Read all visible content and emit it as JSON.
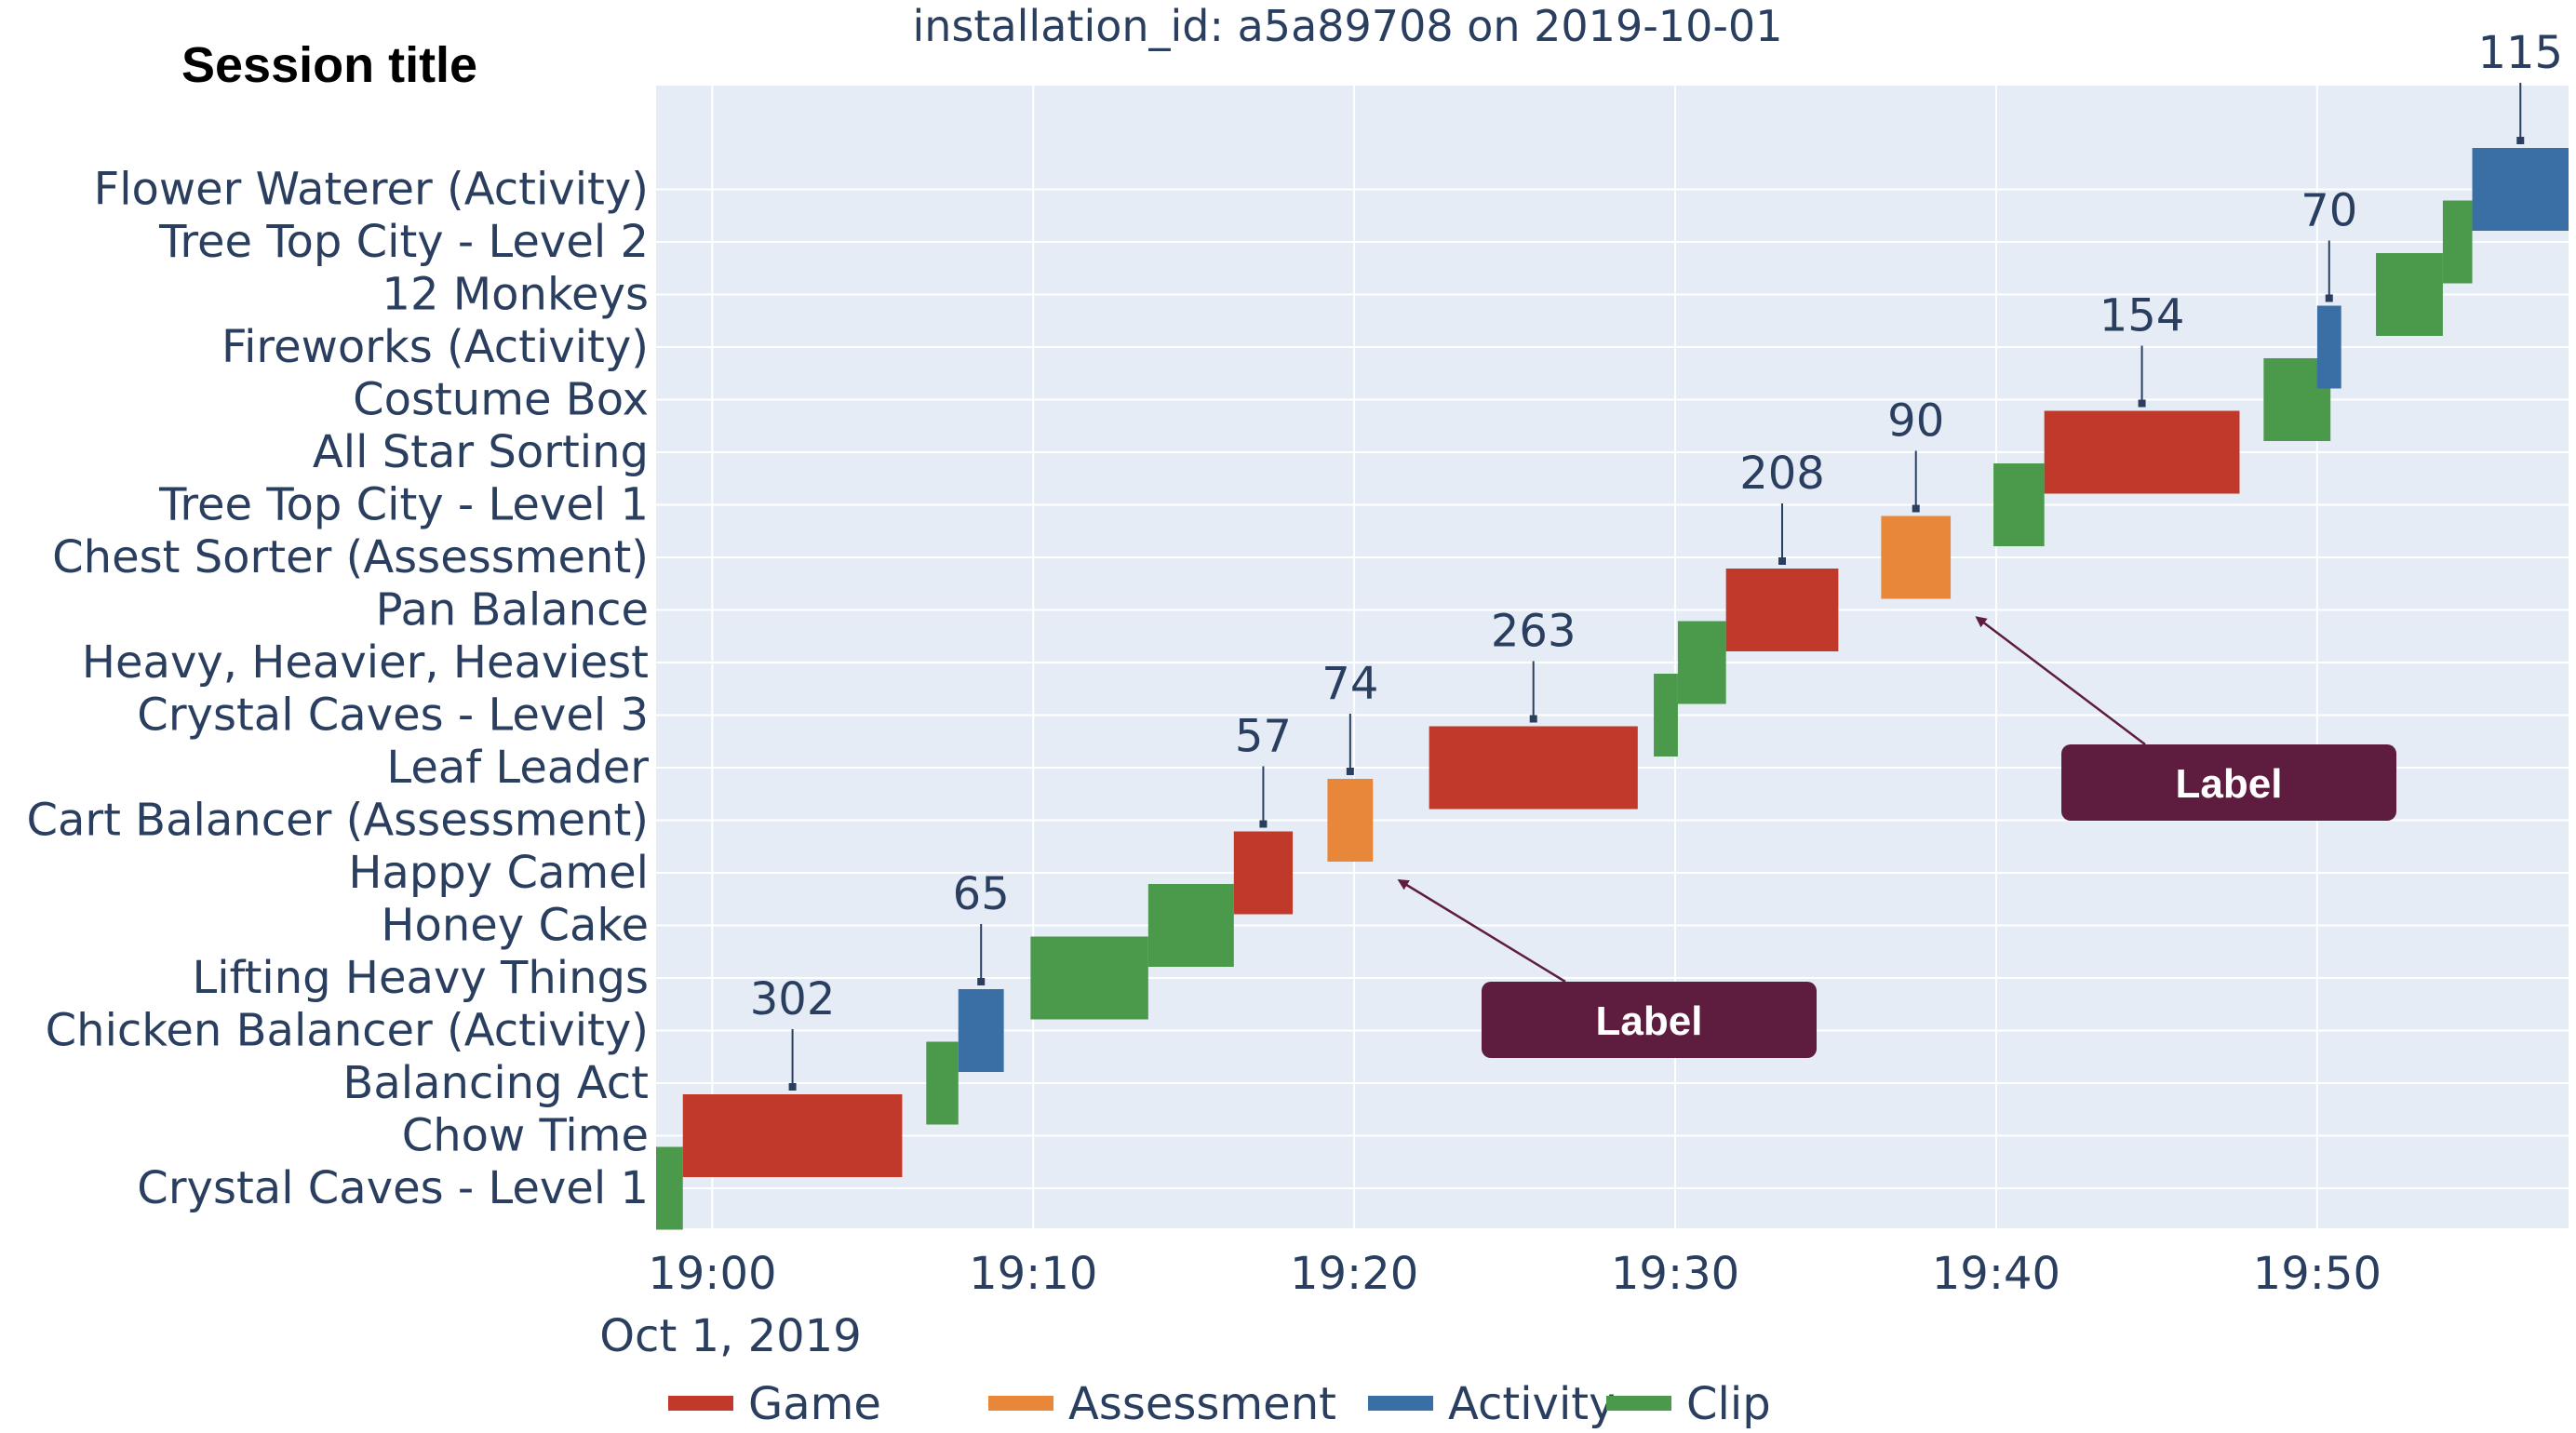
{
  "chart_data": {
    "type": "timeline",
    "title": "installation_id: a5a89708 on 2019-10-01",
    "side_title": "Session title",
    "categories": [
      "Crystal Caves - Level 1",
      "Chow Time",
      "Balancing Act",
      "Chicken Balancer (Activity)",
      "Lifting Heavy Things",
      "Honey Cake",
      "Happy Camel",
      "Cart Balancer (Assessment)",
      "Leaf Leader",
      "Crystal Caves - Level 3",
      "Heavy, Heavier, Heaviest",
      "Pan Balance",
      "Chest Sorter (Assessment)",
      "Tree Top City - Level 1",
      "All Star Sorting",
      "Costume Box",
      "Fireworks (Activity)",
      "12 Monkeys",
      "Tree Top City - Level 2",
      "Flower Waterer (Activity)"
    ],
    "x_ticks": [
      "19:00",
      "19:10",
      "19:20",
      "19:30",
      "19:40",
      "19:50"
    ],
    "x_date_label": "Oct 1, 2019",
    "xlim": [
      "18:58:15",
      "19:57:50"
    ],
    "legend": [
      {
        "name": "Game",
        "color": "#c0392b"
      },
      {
        "name": "Assessment",
        "color": "#e8873a"
      },
      {
        "name": "Activity",
        "color": "#3a6fa5"
      },
      {
        "name": "Clip",
        "color": "#4b9a4b"
      }
    ],
    "legend_position": "bottom",
    "grid": true,
    "series": [
      {
        "category": "Crystal Caves - Level 1",
        "type": "Clip",
        "start": "18:58:15",
        "end": "18:59:05"
      },
      {
        "category": "Chow Time",
        "type": "Game",
        "start": "18:59:05",
        "end": "19:05:55",
        "label": "302"
      },
      {
        "category": "Balancing Act",
        "type": "Clip",
        "start": "19:06:40",
        "end": "19:07:40"
      },
      {
        "category": "Chicken Balancer (Activity)",
        "type": "Activity",
        "start": "19:07:40",
        "end": "19:09:05",
        "label": "65"
      },
      {
        "category": "Lifting Heavy Things",
        "type": "Clip",
        "start": "19:09:55",
        "end": "19:13:35"
      },
      {
        "category": "Honey Cake",
        "type": "Clip",
        "start": "19:13:35",
        "end": "19:16:15"
      },
      {
        "category": "Happy Camel",
        "type": "Game",
        "start": "19:16:15",
        "end": "19:18:05",
        "label": "57"
      },
      {
        "category": "Cart Balancer (Assessment)",
        "type": "Assessment",
        "start": "19:19:10",
        "end": "19:20:35",
        "label": "74"
      },
      {
        "category": "Leaf Leader",
        "type": "Game",
        "start": "19:22:20",
        "end": "19:28:50",
        "label": "263"
      },
      {
        "category": "Crystal Caves - Level 3",
        "type": "Clip",
        "start": "19:29:20",
        "end": "19:30:05"
      },
      {
        "category": "Heavy, Heavier, Heaviest",
        "type": "Clip",
        "start": "19:30:05",
        "end": "19:31:35"
      },
      {
        "category": "Pan Balance",
        "type": "Game",
        "start": "19:31:35",
        "end": "19:35:05",
        "label": "208"
      },
      {
        "category": "Chest Sorter (Assessment)",
        "type": "Assessment",
        "start": "19:36:25",
        "end": "19:38:35",
        "label": "90"
      },
      {
        "category": "Tree Top City - Level 1",
        "type": "Clip",
        "start": "19:39:55",
        "end": "19:41:30"
      },
      {
        "category": "All Star Sorting",
        "type": "Game",
        "start": "19:41:30",
        "end": "19:47:35",
        "label": "154"
      },
      {
        "category": "Costume Box",
        "type": "Clip",
        "start": "19:48:20",
        "end": "19:50:25"
      },
      {
        "category": "Fireworks (Activity)",
        "type": "Activity",
        "start": "19:50:00",
        "end": "19:50:45",
        "label": "70"
      },
      {
        "category": "12 Monkeys",
        "type": "Clip",
        "start": "19:51:50",
        "end": "19:53:55"
      },
      {
        "category": "Tree Top City - Level 2",
        "type": "Clip",
        "start": "19:53:55",
        "end": "19:54:50"
      },
      {
        "category": "Flower Waterer (Activity)",
        "type": "Activity",
        "start": "19:54:50",
        "end": "19:57:50",
        "label": "115"
      }
    ],
    "annotations": [
      {
        "text": "Label",
        "points_to": "Cart Balancer (Assessment)"
      },
      {
        "text": "Label",
        "points_to": "Chest Sorter (Assessment)"
      }
    ]
  }
}
